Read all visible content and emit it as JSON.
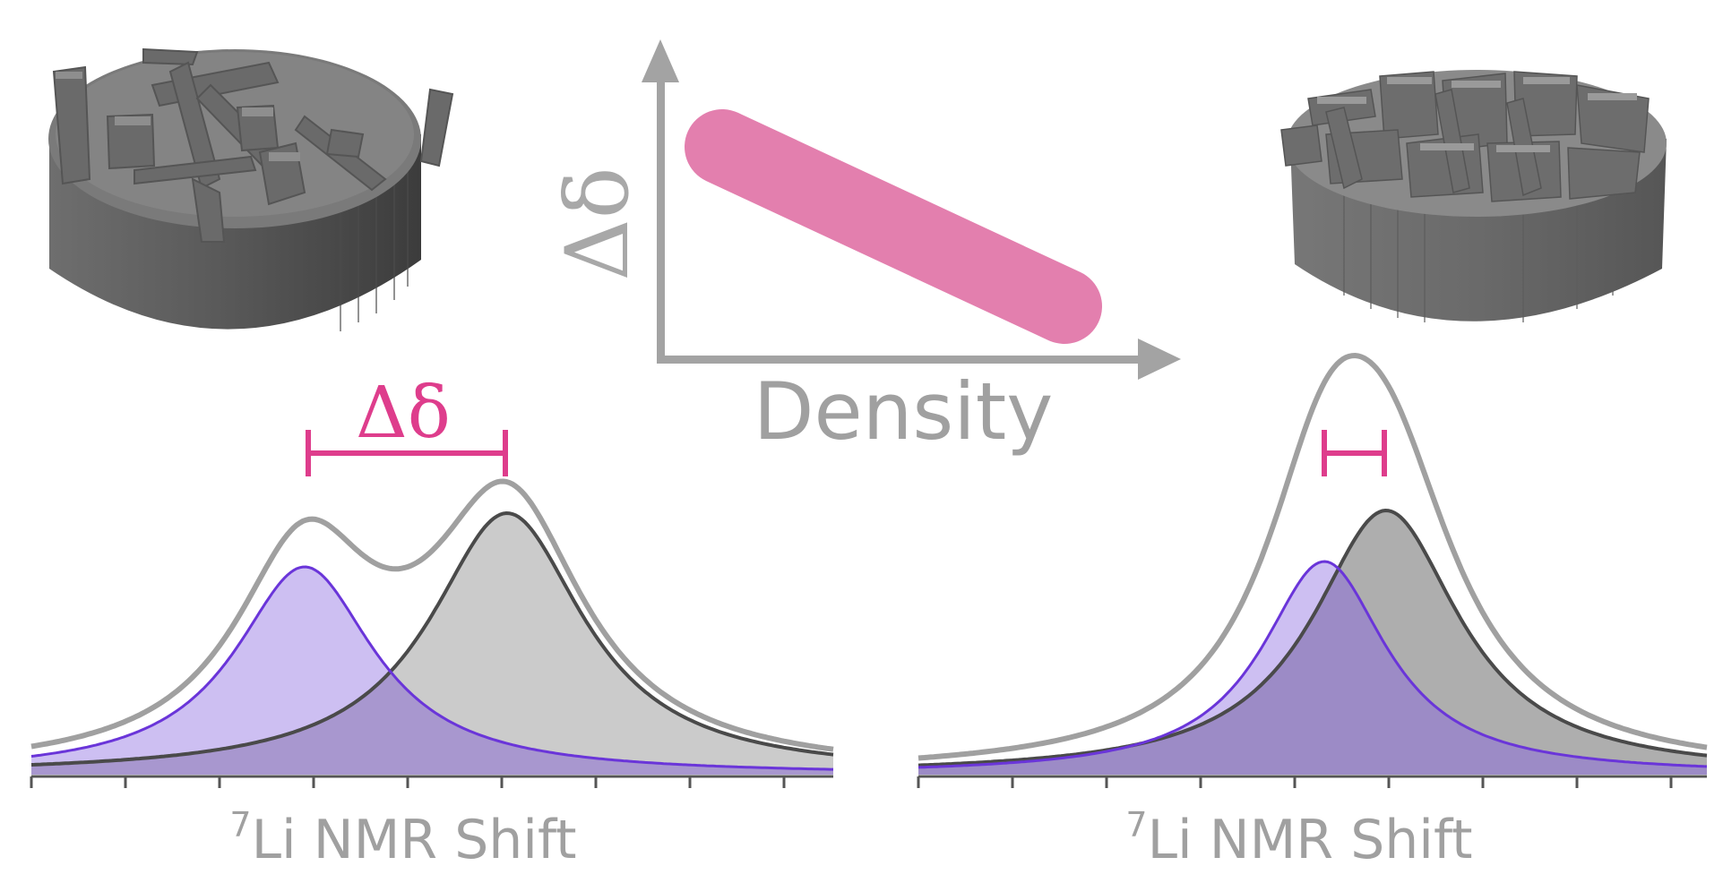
{
  "figure": {
    "trend_panel": {
      "y_axis_label": "Δδ",
      "x_axis_label": "Density"
    },
    "left_spectrum": {
      "annotation": "Δδ",
      "x_axis_label_sup": "7",
      "x_axis_label_main": "Li NMR Shift"
    },
    "right_spectrum": {
      "x_axis_label_sup": "7",
      "x_axis_label_main": "Li NMR Shift"
    }
  },
  "colors": {
    "pink": "#de3d8c",
    "bar_pink": "#e37fae",
    "purple_line": "#6a35d9",
    "purple_fill": "#cdbff2",
    "overlap_fill": "#9c8bc6",
    "dark_gray": "#4a4a4a",
    "light_gray": "#a0a0a0",
    "gray_fill": "#cbcbcb"
  },
  "icons": [
    "sparse-microstructure-icon",
    "dense-microstructure-icon"
  ]
}
